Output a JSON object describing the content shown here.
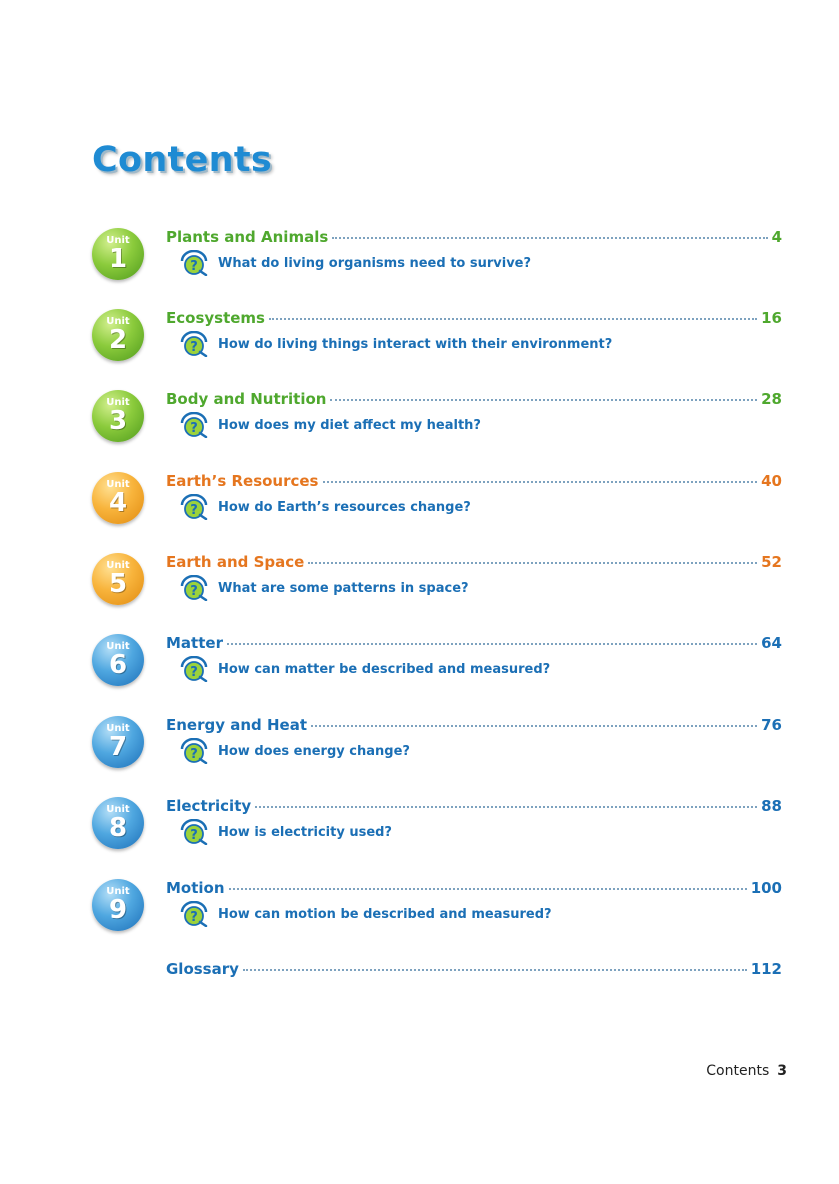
{
  "title": "Contents",
  "colors": {
    "green": "#4fa82e",
    "orange": "#e5761f",
    "blue": "#1b6fb5",
    "question": "#1b6fb5",
    "title": "#1f8bd3"
  },
  "units": [
    {
      "badge_label": "Unit",
      "number": "1",
      "color": "green",
      "title": "Plants and Animals",
      "page": "4",
      "question": "What do living organisms need to survive?"
    },
    {
      "badge_label": "Unit",
      "number": "2",
      "color": "green",
      "title": "Ecosystems",
      "page": "16",
      "question": "How do living things interact with their environment?"
    },
    {
      "badge_label": "Unit",
      "number": "3",
      "color": "green",
      "title": "Body and Nutrition",
      "page": "28",
      "question": "How does my diet affect my health?"
    },
    {
      "badge_label": "Unit",
      "number": "4",
      "color": "orange",
      "title": "Earth’s Resources",
      "page": "40",
      "question": "How do Earth’s resources change?"
    },
    {
      "badge_label": "Unit",
      "number": "5",
      "color": "orange",
      "title": "Earth and Space",
      "page": "52",
      "question": "What are some patterns in space?"
    },
    {
      "badge_label": "Unit",
      "number": "6",
      "color": "blue",
      "title": "Matter",
      "page": "64",
      "question": "How can matter be described and measured?"
    },
    {
      "badge_label": "Unit",
      "number": "7",
      "color": "blue",
      "title": "Energy and Heat",
      "page": "76",
      "question": "How does energy change?"
    },
    {
      "badge_label": "Unit",
      "number": "8",
      "color": "blue",
      "title": "Electricity",
      "page": "88",
      "question": "How is electricity used?"
    },
    {
      "badge_label": "Unit",
      "number": "9",
      "color": "blue",
      "title": "Motion",
      "page": "100",
      "question": "How can motion be described and measured?"
    }
  ],
  "glossary": {
    "title": "Glossary",
    "page": "112",
    "color": "blue"
  },
  "footer": {
    "label": "Contents",
    "page_number": "3"
  },
  "icons": {
    "big_question": "big-question-icon"
  }
}
